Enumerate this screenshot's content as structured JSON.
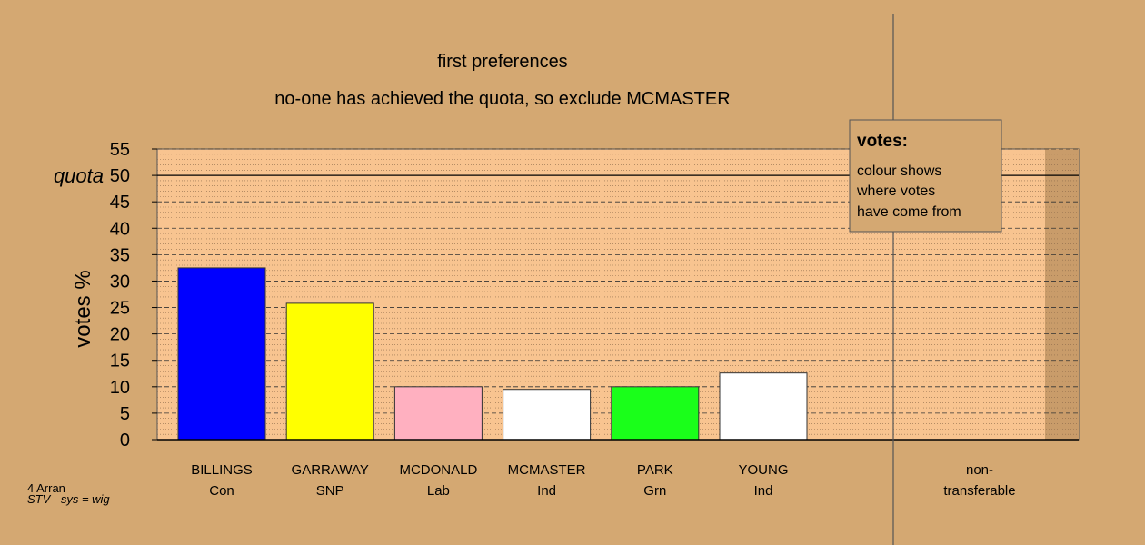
{
  "chart_data": {
    "type": "bar",
    "title": "first preferences",
    "subtitle": "no-one has achieved the quota, so exclude MCMASTER",
    "ylabel": "votes %",
    "ylim": [
      0,
      55
    ],
    "yticks": [
      0,
      5,
      10,
      15,
      20,
      25,
      30,
      35,
      40,
      45,
      50,
      55
    ],
    "quota": {
      "label": "quota",
      "value": 50
    },
    "categories": [
      {
        "name": "BILLINGS",
        "party": "Con",
        "value": 32.5,
        "color": "#0000FF"
      },
      {
        "name": "GARRAWAY",
        "party": "SNP",
        "value": 25.8,
        "color": "#FFFF00"
      },
      {
        "name": "MCDONALD",
        "party": "Lab",
        "value": 10.0,
        "color": "#FFB0C0"
      },
      {
        "name": "MCMASTER",
        "party": "Ind",
        "value": 9.5,
        "color": "#FFFFFF"
      },
      {
        "name": "PARK",
        "party": "Grn",
        "value": 10.0,
        "color": "#1AFF1A"
      },
      {
        "name": "YOUNG",
        "party": "Ind",
        "value": 12.6,
        "color": "#FFFFFF"
      }
    ],
    "nontransferable": {
      "line1": "non-",
      "line2": "transferable",
      "value": 0
    },
    "legend": {
      "title": "votes:",
      "lines": [
        "colour shows",
        "where votes",
        "have come from"
      ],
      "placement": "top-right"
    }
  },
  "footer": {
    "line1": "4 Arran",
    "line2": "STV - sys = wig"
  },
  "colors": {
    "background": "#D4A872",
    "plot_fill": "#F8C490",
    "shade_fill": "#C99C6A"
  }
}
